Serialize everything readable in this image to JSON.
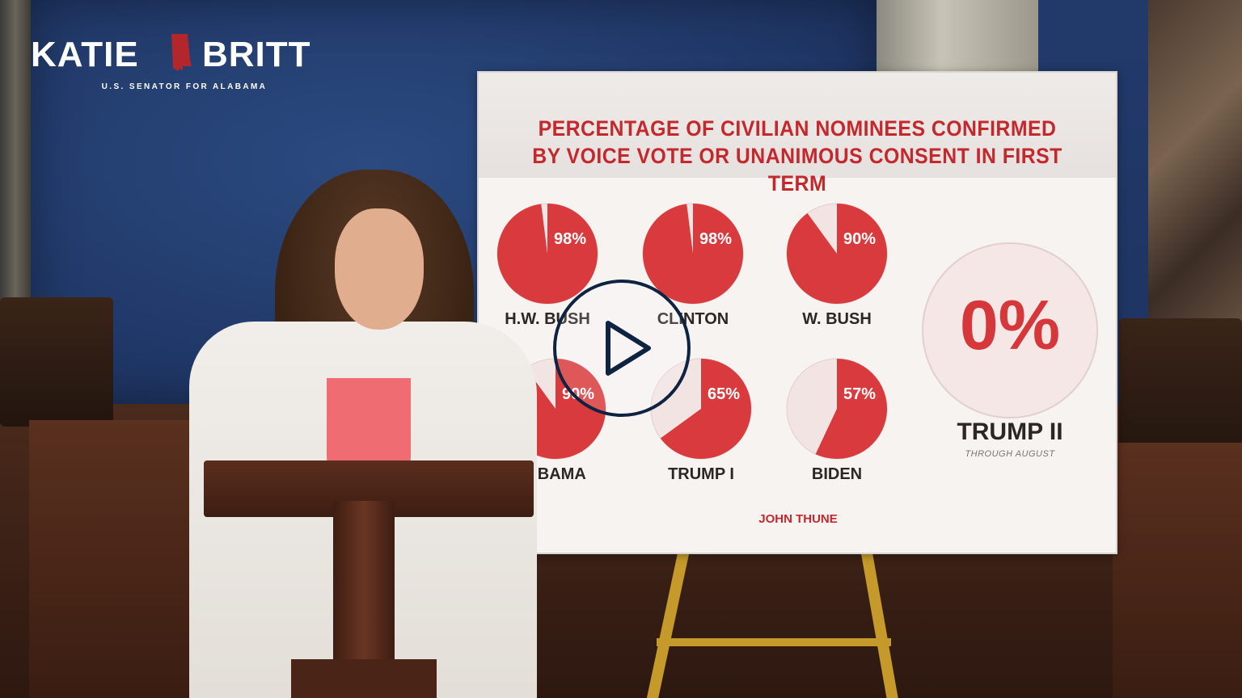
{
  "brand": {
    "first_name": "KATIE",
    "last_name": "BRITT",
    "subtitle": "U.S. SENATOR FOR ALABAMA",
    "state_icon": "alabama-state-icon",
    "color": "#b3262b"
  },
  "board": {
    "title_line1": "PERCENTAGE OF CIVILIAN NOMINEES CONFIRMED",
    "title_line2": "BY VOICE VOTE OR UNANIMOUS CONSENT IN FIRST TERM",
    "accent_color": "#d93a3d",
    "pies": [
      {
        "label": "H.W. BUSH",
        "percent_text": "98%",
        "value": 98
      },
      {
        "label": "CLINTON",
        "percent_text": "98%",
        "value": 98
      },
      {
        "label": "W. BUSH",
        "percent_text": "90%",
        "value": 90
      },
      {
        "label": "OBAMA",
        "percent_text": "90%",
        "value": 90
      },
      {
        "label": "TRUMP I",
        "percent_text": "65%",
        "value": 65
      },
      {
        "label": "BIDEN",
        "percent_text": "57%",
        "value": 57
      }
    ],
    "highlight": {
      "percent_text": "0%",
      "label": "TRUMP II",
      "note": "THROUGH AUGUST"
    },
    "footer_logo": "JOHN THUNE"
  },
  "player": {
    "play_icon": "play-icon"
  }
}
